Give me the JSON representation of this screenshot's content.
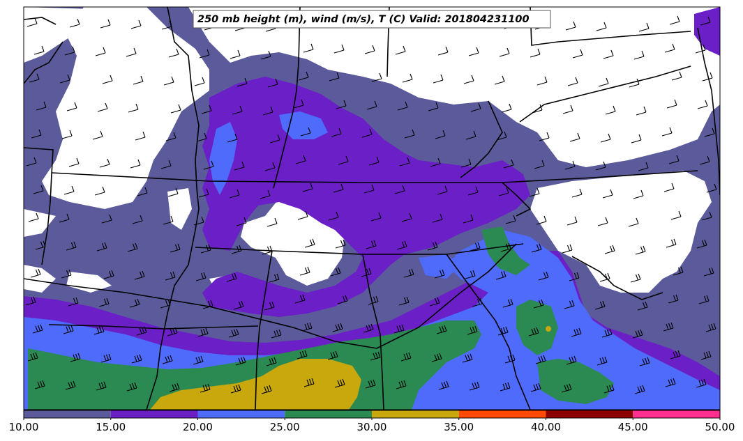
{
  "title": "250 mb height (m), wind (m/s), T (C) Valid: 201804231100",
  "colorbar": {
    "ticks": [
      "10.00",
      "15.00",
      "20.00",
      "25.00",
      "30.00",
      "35.00",
      "40.00",
      "45.00",
      "50.00"
    ],
    "colors": [
      "#5b5b9c",
      "#6a1fc7",
      "#4f6bfb",
      "#2a8a52",
      "#c8a80c",
      "#ff4a00",
      "#8e0000",
      "#ff2e8f"
    ]
  },
  "palette": {
    "land_white": "#ffffff",
    "speed_10_15": "#5b5b9c",
    "speed_15_20": "#6a1fc7",
    "speed_20_25": "#4f6bfb",
    "speed_25_30": "#2a8a52",
    "speed_30_35": "#c8a80c",
    "speed_35_40": "#ff4a00",
    "borders": "#000000"
  }
}
